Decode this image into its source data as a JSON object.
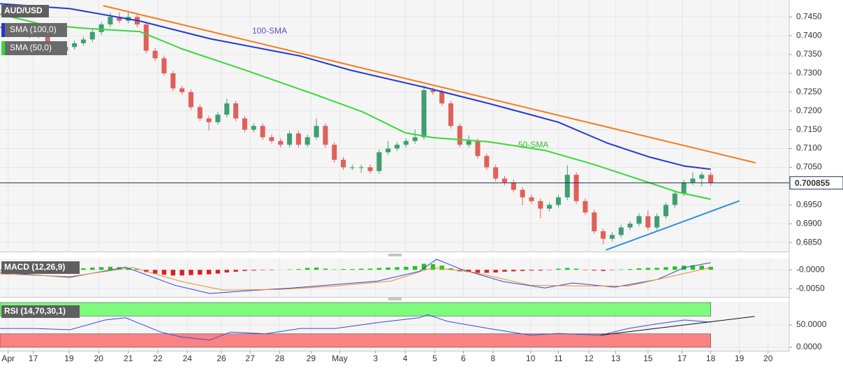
{
  "chart_data": [
    {
      "type": "candlestick",
      "symbol": "AUD/USD",
      "xlim": [
        -0.31,
        87.76
      ],
      "ylim": [
        0.6826,
        0.7495
      ],
      "grid": true,
      "up_color": "#3f9e72",
      "down_color": "#e0605a",
      "yticks": [
        {
          "value": 0.745,
          "label": "0.7450"
        },
        {
          "value": 0.74,
          "label": "0.7400"
        },
        {
          "value": 0.735,
          "label": "0.7350"
        },
        {
          "value": 0.73,
          "label": "0.7300"
        },
        {
          "value": 0.725,
          "label": "0.7250"
        },
        {
          "value": 0.72,
          "label": "0.7200"
        },
        {
          "value": 0.715,
          "label": "0.7150"
        },
        {
          "value": 0.71,
          "label": "0.7100"
        },
        {
          "value": 0.705,
          "label": "0.7050"
        },
        {
          "value": 0.7,
          "label": "0.7000"
        },
        {
          "value": 0.695,
          "label": "0.6950"
        },
        {
          "value": 0.69,
          "label": "0.6900"
        },
        {
          "value": 0.685,
          "label": "0.6850"
        }
      ],
      "open": [
        0.7425,
        0.742,
        0.7415,
        0.741,
        0.74,
        0.741,
        0.7355,
        0.736,
        0.737,
        0.738,
        0.739,
        0.741,
        0.743,
        0.745,
        0.744,
        0.745,
        0.743,
        0.736,
        0.734,
        0.73,
        0.726,
        0.725,
        0.721,
        0.718,
        0.717,
        0.719,
        0.722,
        0.718,
        0.715,
        0.716,
        0.713,
        0.712,
        0.711,
        0.714,
        0.711,
        0.713,
        0.716,
        0.711,
        0.707,
        0.705,
        0.705,
        0.705,
        0.704,
        0.709,
        0.71,
        0.711,
        0.712,
        0.713,
        0.7255,
        0.725,
        0.722,
        0.716,
        0.711,
        0.712,
        0.708,
        0.705,
        0.702,
        0.701,
        0.699,
        0.697,
        0.696,
        0.694,
        0.695,
        0.697,
        0.703,
        0.696,
        0.693,
        0.688,
        0.686,
        0.687,
        0.689,
        0.69,
        0.692,
        0.689,
        0.692,
        0.695,
        0.698,
        0.701,
        0.702,
        0.703
      ],
      "high": [
        0.7432,
        0.7427,
        0.7422,
        0.7417,
        0.7417,
        0.7417,
        0.7367,
        0.7377,
        0.7387,
        0.7397,
        0.7417,
        0.7437,
        0.7462,
        0.7462,
        0.7462,
        0.7457,
        0.7437,
        0.7367,
        0.7347,
        0.7307,
        0.7267,
        0.7257,
        0.7217,
        0.7187,
        0.7197,
        0.7232,
        0.7227,
        0.7187,
        0.7167,
        0.7167,
        0.7137,
        0.7127,
        0.7147,
        0.7147,
        0.7137,
        0.718,
        0.7167,
        0.7117,
        0.7077,
        0.7057,
        0.7057,
        0.7057,
        0.7097,
        0.712,
        0.7117,
        0.7127,
        0.715,
        0.7268,
        0.7262,
        0.7257,
        0.7227,
        0.7167,
        0.7135,
        0.7127,
        0.7087,
        0.7057,
        0.7027,
        0.7017,
        0.6997,
        0.6977,
        0.6967,
        0.6957,
        0.6977,
        0.7055,
        0.7037,
        0.6967,
        0.6937,
        0.6887,
        0.6877,
        0.6897,
        0.6907,
        0.6927,
        0.6935,
        0.6927,
        0.6957,
        0.6987,
        0.7017,
        0.7037,
        0.7037,
        0.7037
      ],
      "low": [
        0.7413,
        0.7408,
        0.7403,
        0.7393,
        0.7393,
        0.7348,
        0.7348,
        0.7353,
        0.7363,
        0.7373,
        0.7383,
        0.7403,
        0.7423,
        0.7433,
        0.7433,
        0.7423,
        0.7353,
        0.7333,
        0.7293,
        0.7253,
        0.7243,
        0.7203,
        0.7173,
        0.7148,
        0.7163,
        0.7183,
        0.7173,
        0.7143,
        0.7143,
        0.7123,
        0.7113,
        0.7103,
        0.7103,
        0.7103,
        0.7103,
        0.7123,
        0.7103,
        0.7063,
        0.7043,
        0.7043,
        0.7035,
        0.7033,
        0.7033,
        0.7083,
        0.7093,
        0.7103,
        0.7113,
        0.7123,
        0.7243,
        0.7213,
        0.7153,
        0.7103,
        0.7103,
        0.7073,
        0.7043,
        0.7013,
        0.7003,
        0.6983,
        0.695,
        0.6953,
        0.6915,
        0.6933,
        0.6943,
        0.6963,
        0.6953,
        0.6923,
        0.6873,
        0.6845,
        0.6853,
        0.6863,
        0.6883,
        0.6893,
        0.6883,
        0.6883,
        0.6913,
        0.6943,
        0.6973,
        0.7003,
        0.7,
        0.7002
      ],
      "close": [
        0.742,
        0.7415,
        0.741,
        0.74,
        0.741,
        0.7355,
        0.736,
        0.737,
        0.738,
        0.739,
        0.741,
        0.743,
        0.745,
        0.744,
        0.745,
        0.743,
        0.736,
        0.734,
        0.73,
        0.726,
        0.725,
        0.721,
        0.718,
        0.717,
        0.719,
        0.722,
        0.718,
        0.715,
        0.716,
        0.713,
        0.712,
        0.711,
        0.714,
        0.711,
        0.713,
        0.716,
        0.711,
        0.707,
        0.705,
        0.705,
        0.705,
        0.704,
        0.709,
        0.71,
        0.711,
        0.712,
        0.713,
        0.7255,
        0.725,
        0.722,
        0.716,
        0.711,
        0.712,
        0.708,
        0.705,
        0.702,
        0.701,
        0.699,
        0.697,
        0.696,
        0.694,
        0.695,
        0.697,
        0.703,
        0.696,
        0.693,
        0.688,
        0.686,
        0.687,
        0.689,
        0.69,
        0.692,
        0.689,
        0.692,
        0.695,
        0.698,
        0.701,
        0.702,
        0.703,
        0.7009
      ],
      "series": [
        {
          "name": "SMA (100,0)",
          "color": "#2238d6",
          "x": [
            -0.3,
            7.5,
            15.3,
            23.1,
            33.2,
            38.7,
            47.2,
            54.2,
            62,
            67.5,
            72.2,
            76.1,
            79
          ],
          "values": [
            0.7485,
            0.7472,
            0.7439,
            0.7392,
            0.7346,
            0.7309,
            0.7262,
            0.722,
            0.717,
            0.7114,
            0.7077,
            0.7053,
            0.7045
          ]
        },
        {
          "name": "SMA (50,0)",
          "color": "#36d936",
          "x": [
            -0.3,
            4.4,
            9,
            15.3,
            20,
            27,
            34.8,
            40.2,
            44.9,
            48,
            54.2,
            60.5,
            65.9,
            71.4,
            75.3,
            79
          ],
          "values": [
            0.7457,
            0.743,
            0.742,
            0.7411,
            0.7365,
            0.7309,
            0.7244,
            0.7197,
            0.7142,
            0.7129,
            0.7118,
            0.7095,
            0.7058,
            0.7015,
            0.6984,
            0.6965
          ]
        }
      ],
      "trendlines": [
        {
          "color": "#f47c20",
          "x": [
            11.2,
            84
          ],
          "values": [
            0.748,
            0.7062
          ]
        },
        {
          "color": "#2f8fe0",
          "x": [
            67.3,
            82.2
          ],
          "values": [
            0.683,
            0.6961
          ]
        }
      ],
      "annotations": [
        {
          "text": "100-SMA",
          "color": "#5b4fcf"
        },
        {
          "text": "50-SMA",
          "color": "#2fbf2f"
        }
      ],
      "last_price": 0.700855,
      "last_price_color": "#1f2d4d"
    },
    {
      "type": "macd",
      "title": "MACD (12,26,9)",
      "xlim": [
        -0.31,
        87.76
      ],
      "ylim": [
        -0.0072,
        0.003
      ],
      "grid": true,
      "yticks": [
        {
          "value": 0,
          "label": "-0.0000"
        },
        {
          "value": -0.005,
          "label": "-0.0050"
        }
      ],
      "up_color": "#22c422",
      "down_color": "#e01f1f",
      "histogram": [
        -0.0003,
        -0.0003,
        -0.0002,
        -0.0002,
        -0.0001,
        -0.0002,
        -0.0001,
        0.0,
        0.0002,
        0.0004,
        0.0006,
        0.0007,
        0.0008,
        0.0007,
        0.0006,
        0.0003,
        -0.0006,
        -0.001,
        -0.0013,
        -0.0015,
        -0.0015,
        -0.0014,
        -0.0013,
        -0.0012,
        -0.001,
        -0.0007,
        -0.0005,
        -0.0003,
        -0.0002,
        -0.0001,
        -0.0001,
        0.0,
        0.0001,
        0.0002,
        0.0005,
        0.0006,
        0.0003,
        0.0001,
        0.0002,
        0.0002,
        0.0003,
        0.0003,
        0.0005,
        0.0006,
        0.0007,
        0.0008,
        0.001,
        0.0016,
        0.0015,
        0.0011,
        0.0004,
        -0.0004,
        -0.0006,
        -0.0008,
        -0.0008,
        -0.0007,
        -0.0005,
        -0.0004,
        -0.0003,
        -0.0002,
        -0.0002,
        -0.0001,
        0.0003,
        0.0005,
        0.0003,
        -0.0001,
        -0.0002,
        -0.0003,
        -0.0001,
        0.0001,
        0.0002,
        0.0004,
        0.0005,
        0.0005,
        0.0007,
        0.0009,
        0.0011,
        0.0012,
        0.0011,
        0.0008
      ],
      "series": [
        {
          "color": "#2448e0",
          "x": [
            -0.3,
            7.5,
            13.7,
            19.2,
            23.1,
            27,
            32.4,
            37.1,
            41.8,
            46.5,
            48.4,
            51.1,
            55.8,
            60.5,
            63.6,
            68.3,
            73,
            76.1,
            79
          ],
          "values": [
            -0.0007,
            -0.002,
            0.0007,
            -0.0041,
            -0.0063,
            -0.0056,
            -0.0048,
            -0.0039,
            -0.003,
            -0.0004,
            0.0028,
            0.0002,
            -0.0031,
            -0.0048,
            -0.0035,
            -0.0046,
            -0.0026,
            0.0006,
            0.0019
          ]
        },
        {
          "color": "#f08a24",
          "x": [
            -0.3,
            7.5,
            14.5,
            19.9,
            24.6,
            30.9,
            37.1,
            43.3,
            48,
            52.7,
            58.9,
            65.2,
            69.8,
            74.5,
            79
          ],
          "values": [
            -0.0011,
            -0.0018,
            0.0006,
            -0.0031,
            -0.0054,
            -0.0052,
            -0.0043,
            -0.003,
            0.0006,
            -0.0007,
            -0.0041,
            -0.0043,
            -0.0043,
            -0.0018,
            0.0006
          ]
        }
      ]
    },
    {
      "type": "rsi",
      "title": "RSI (14,70,30,1)",
      "xlim": [
        -0.31,
        87.76
      ],
      "ylim": [
        -4.7,
        101.6
      ],
      "grid": true,
      "yticks": [
        {
          "value": 50,
          "label": "50.0000"
        },
        {
          "value": 0,
          "label": "0.0000"
        }
      ],
      "bands": [
        {
          "range": [
            70,
            100
          ],
          "color": "#7dfb7d"
        },
        {
          "range": [
            0,
            30
          ],
          "color": "#fb8282"
        }
      ],
      "band_end": 79,
      "series": [
        {
          "color": "#2f4fe0",
          "x": [
            -0.3,
            3.6,
            7.5,
            11.4,
            13.7,
            17.6,
            19.9,
            23.1,
            25.4,
            29.3,
            33.2,
            37.1,
            41.8,
            46.5,
            47.4,
            49.6,
            54.2,
            58.9,
            62,
            66.7,
            69.8,
            72.9,
            76.1,
            79
          ],
          "values": [
            42,
            42,
            39,
            61,
            66,
            34,
            23,
            16,
            34,
            30,
            42,
            42,
            55,
            66,
            73,
            58,
            42,
            27,
            31,
            27,
            42,
            52,
            61,
            56
          ]
        }
      ],
      "trendlines": [
        {
          "color": "#111111",
          "x": [
            66.7,
            83.9
          ],
          "values": [
            27,
            69
          ]
        }
      ],
      "xticks": [
        {
          "value": 0.6,
          "label": "Apr"
        },
        {
          "value": 3.4,
          "label": "17"
        },
        {
          "value": 7.4,
          "label": "19"
        },
        {
          "value": 10.7,
          "label": "20"
        },
        {
          "value": 14,
          "label": "21"
        },
        {
          "value": 17.3,
          "label": "22"
        },
        {
          "value": 20.6,
          "label": "24"
        },
        {
          "value": 24.4,
          "label": "26"
        },
        {
          "value": 27.6,
          "label": "27"
        },
        {
          "value": 30.9,
          "label": "28"
        },
        {
          "value": 34.4,
          "label": "29"
        },
        {
          "value": 37.6,
          "label": "May"
        },
        {
          "value": 41.6,
          "label": "3"
        },
        {
          "value": 44.9,
          "label": "4"
        },
        {
          "value": 48.2,
          "label": "5"
        },
        {
          "value": 51.4,
          "label": "6"
        },
        {
          "value": 54.7,
          "label": "8"
        },
        {
          "value": 58.9,
          "label": "10"
        },
        {
          "value": 62,
          "label": "11"
        },
        {
          "value": 65.4,
          "label": "12"
        },
        {
          "value": 68.4,
          "label": "13"
        },
        {
          "value": 72,
          "label": "15"
        },
        {
          "value": 75.8,
          "label": "17"
        },
        {
          "value": 79,
          "label": "18"
        },
        {
          "value": 82.2,
          "label": "19"
        },
        {
          "value": 85.4,
          "label": "20"
        }
      ]
    }
  ]
}
